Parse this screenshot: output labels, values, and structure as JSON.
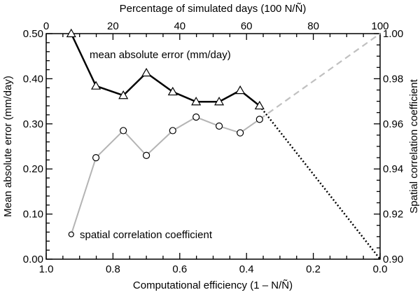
{
  "chart_data": {
    "type": "line",
    "title": "",
    "xlabel": "Computational efficiency (1 – N/Ñ)",
    "xlabel_top": "Percentage of simulated days (100 N/Ñ)",
    "ylabel": "Mean absolute error (mm/day)",
    "ylabel_right": "Spatial correlation coefficient",
    "xlim": [
      1.0,
      0.0
    ],
    "xlim_top": [
      0,
      100
    ],
    "ylim": [
      0.0,
      0.5
    ],
    "ylim_right": [
      0.9,
      1.0
    ],
    "x_ticks": [
      "1.0",
      "0.8",
      "0.6",
      "0.4",
      "0.2",
      "0.0"
    ],
    "x_tick_values": [
      1.0,
      0.8,
      0.6,
      0.4,
      0.2,
      0.0
    ],
    "x_top_ticks": [
      "0",
      "20",
      "40",
      "60",
      "80",
      "100"
    ],
    "x_top_tick_values": [
      0,
      20,
      40,
      60,
      80,
      100
    ],
    "y_ticks": [
      "0.00",
      "0.10",
      "0.20",
      "0.30",
      "0.40",
      "0.50"
    ],
    "y_tick_values": [
      0.0,
      0.1,
      0.2,
      0.3,
      0.4,
      0.5
    ],
    "y_right_ticks": [
      "0.90",
      "0.92",
      "0.94",
      "0.96",
      "0.98",
      "1.00"
    ],
    "y_right_tick_values": [
      0.9,
      0.92,
      0.94,
      0.96,
      0.98,
      1.0
    ],
    "grid": false,
    "x": [
      7.5,
      14.9,
      23.1,
      30.0,
      37.9,
      44.9,
      51.8,
      58.1,
      63.9
    ],
    "series": [
      {
        "name": "mean absolute error (mm/day)",
        "axis": "left",
        "marker": "triangle",
        "color": "#000000",
        "values": [
          0.5,
          0.384,
          0.363,
          0.413,
          0.371,
          0.349,
          0.349,
          0.374,
          0.34
        ],
        "extrapolation": {
          "to_x": 100,
          "to_value": 0.0,
          "style": "dotted",
          "color": "#000000"
        }
      },
      {
        "name": "spatial correlation coefficient",
        "axis": "right",
        "marker": "circle",
        "color": "#b4b4b4",
        "values": [
          0.911,
          0.945,
          0.957,
          0.946,
          0.957,
          0.963,
          0.959,
          0.956,
          0.962
        ],
        "extrapolation": {
          "to_x": 100,
          "to_value": 1.0,
          "style": "dashed",
          "color": "#c0c0c0"
        }
      }
    ],
    "annotations": [
      {
        "text": "mean absolute error (mm/day)",
        "near": "upper-left"
      },
      {
        "text": "spatial correlation coefficient",
        "near": "lower-left"
      }
    ]
  }
}
